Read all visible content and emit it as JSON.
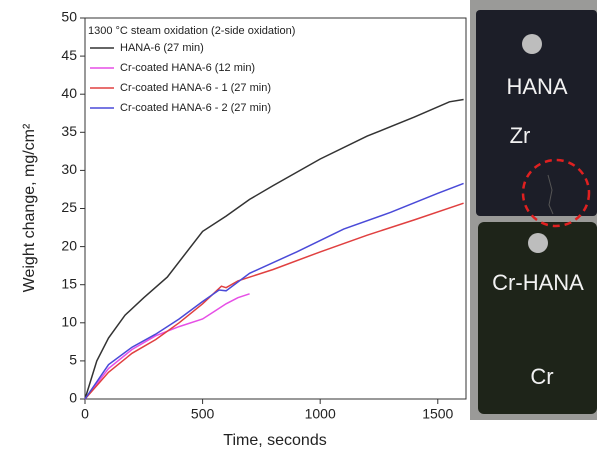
{
  "chart_data": {
    "type": "line",
    "annotation": "1300 °C steam oxidation (2-side oxidation)",
    "x_label": "Time, seconds",
    "y_label": "Weight change, mg/cm²",
    "xlim": [
      0,
      1620
    ],
    "xticks": [
      0,
      500,
      1000,
      1500
    ],
    "ylim": [
      0,
      50
    ],
    "yticks": [
      0,
      5,
      10,
      15,
      20,
      25,
      30,
      35,
      40,
      45,
      50
    ],
    "grid": false,
    "legend": "upper left",
    "series": [
      {
        "name": "HANA-6 (27 min)",
        "color": "#333333",
        "x": [
          0,
          50,
          100,
          170,
          250,
          350,
          500,
          600,
          700,
          800,
          1000,
          1200,
          1400,
          1550,
          1610
        ],
        "values": [
          0,
          5,
          8,
          11,
          13.3,
          16,
          22,
          24,
          26.2,
          28,
          31.5,
          34.5,
          37,
          39,
          39.3
        ]
      },
      {
        "name": "Cr-coated HANA-6 (12 min)",
        "color": "#e64fe6",
        "x": [
          0,
          100,
          200,
          300,
          400,
          500,
          550,
          600,
          650,
          700
        ],
        "values": [
          0,
          4,
          6.5,
          8.3,
          9.5,
          10.5,
          11.5,
          12.5,
          13.3,
          13.8
        ]
      },
      {
        "name": "Cr-coated HANA-6  - 1 (27 min)",
        "color": "#e04040",
        "x": [
          0,
          100,
          200,
          300,
          400,
          500,
          580,
          600,
          650,
          800,
          1000,
          1200,
          1400,
          1610
        ],
        "values": [
          0,
          3.5,
          6,
          7.8,
          10,
          12.5,
          14.8,
          14.6,
          15.5,
          17,
          19.3,
          21.5,
          23.5,
          25.7
        ]
      },
      {
        "name": "Cr-coated HANA-6  - 2 (27 min)",
        "color": "#4a4ad8",
        "x": [
          0,
          100,
          200,
          300,
          400,
          500,
          570,
          600,
          700,
          900,
          1100,
          1300,
          1500,
          1610
        ],
        "values": [
          0,
          4.5,
          6.8,
          8.5,
          10.5,
          12.8,
          14.3,
          14.2,
          16.5,
          19.3,
          22.3,
          24.5,
          27,
          28.3
        ]
      }
    ]
  },
  "photo": {
    "labels": [
      "HANA",
      "Zr",
      "Cr-HANA",
      "Cr"
    ]
  }
}
